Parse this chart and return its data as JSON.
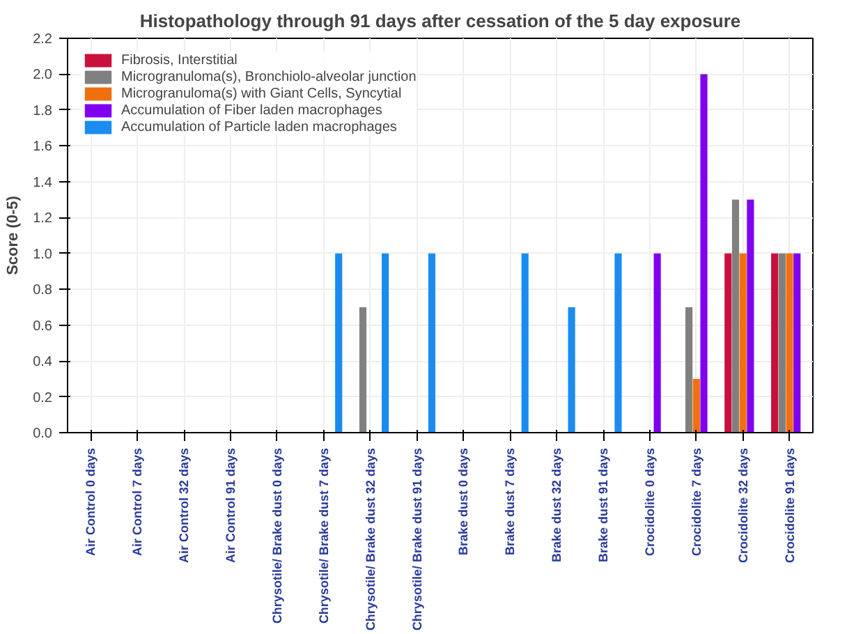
{
  "chart_data": {
    "type": "bar",
    "title": "Histopathology through 91 days after cessation of the 5 day exposure",
    "ylabel": "Score (0-5)",
    "categories": [
      "Air Control 0 days",
      "Air Control 7 days",
      "Air Control 32 days",
      "Air Control 91 days",
      "Chrysotile/ Brake dust 0 days",
      "Chrysotile/ Brake dust 7 days",
      "Chrysotile/ Brake dust 32 days",
      "Chrysotile/ Brake dust 91 days",
      "Brake dust 0 days",
      "Brake dust 7 days",
      "Brake dust 32 days",
      "Brake dust 91 days",
      "Crocidolite 0 days",
      "Crocidolite 7 days",
      "Crocidolite 32 days",
      "Crocidolite 91 days"
    ],
    "series": [
      {
        "name": "Fibrosis, Interstitial",
        "color": "#c8103c",
        "values": [
          0,
          0,
          0,
          0,
          0,
          0,
          0,
          0,
          0,
          0,
          0,
          0,
          0,
          0,
          1.0,
          1.0
        ]
      },
      {
        "name": "Microgranuloma(s), Bronchiolo-alveolar junction",
        "color": "#808080",
        "values": [
          0,
          0,
          0,
          0,
          0,
          0,
          0.7,
          0,
          0,
          0,
          0,
          0,
          0,
          0.7,
          1.3,
          1.0
        ]
      },
      {
        "name": "Microgranuloma(s) with Giant Cells, Syncytial",
        "color": "#f07010",
        "values": [
          0,
          0,
          0,
          0,
          0,
          0,
          0,
          0,
          0,
          0,
          0,
          0,
          0,
          0.3,
          1.0,
          1.0
        ]
      },
      {
        "name": "Accumulation of Fiber laden macrophages",
        "color": "#8000f0",
        "values": [
          0,
          0,
          0,
          0,
          0,
          0,
          0,
          0,
          0,
          0,
          0,
          0,
          1.0,
          2.0,
          1.3,
          1.0
        ]
      },
      {
        "name": "Accumulation of Particle laden macrophages",
        "color": "#1a8cf0",
        "values": [
          0,
          0,
          0,
          0,
          0,
          1.0,
          1.0,
          1.0,
          0,
          1.0,
          0.7,
          1.0,
          0,
          0,
          0,
          0
        ]
      }
    ],
    "ylim": [
      0,
      2.2
    ],
    "yticks": [
      {
        "value": 0,
        "label": "0.0"
      },
      {
        "value": 0.2,
        "label": "0.2"
      },
      {
        "value": 0.4,
        "label": "0.4"
      },
      {
        "value": 0.6,
        "label": "0.6"
      },
      {
        "value": 0.8,
        "label": "0.8"
      },
      {
        "value": 1.0,
        "label": "1.0"
      },
      {
        "value": 1.2,
        "label": "1.2"
      },
      {
        "value": 1.4,
        "label": "1.4"
      },
      {
        "value": 1.6,
        "label": "1.6"
      },
      {
        "value": 1.8,
        "label": "1.8"
      },
      {
        "value": 2.0,
        "label": "2.0"
      },
      {
        "value": 2.2,
        "label": "2.2"
      }
    ],
    "grid": true,
    "legend": "top left"
  }
}
